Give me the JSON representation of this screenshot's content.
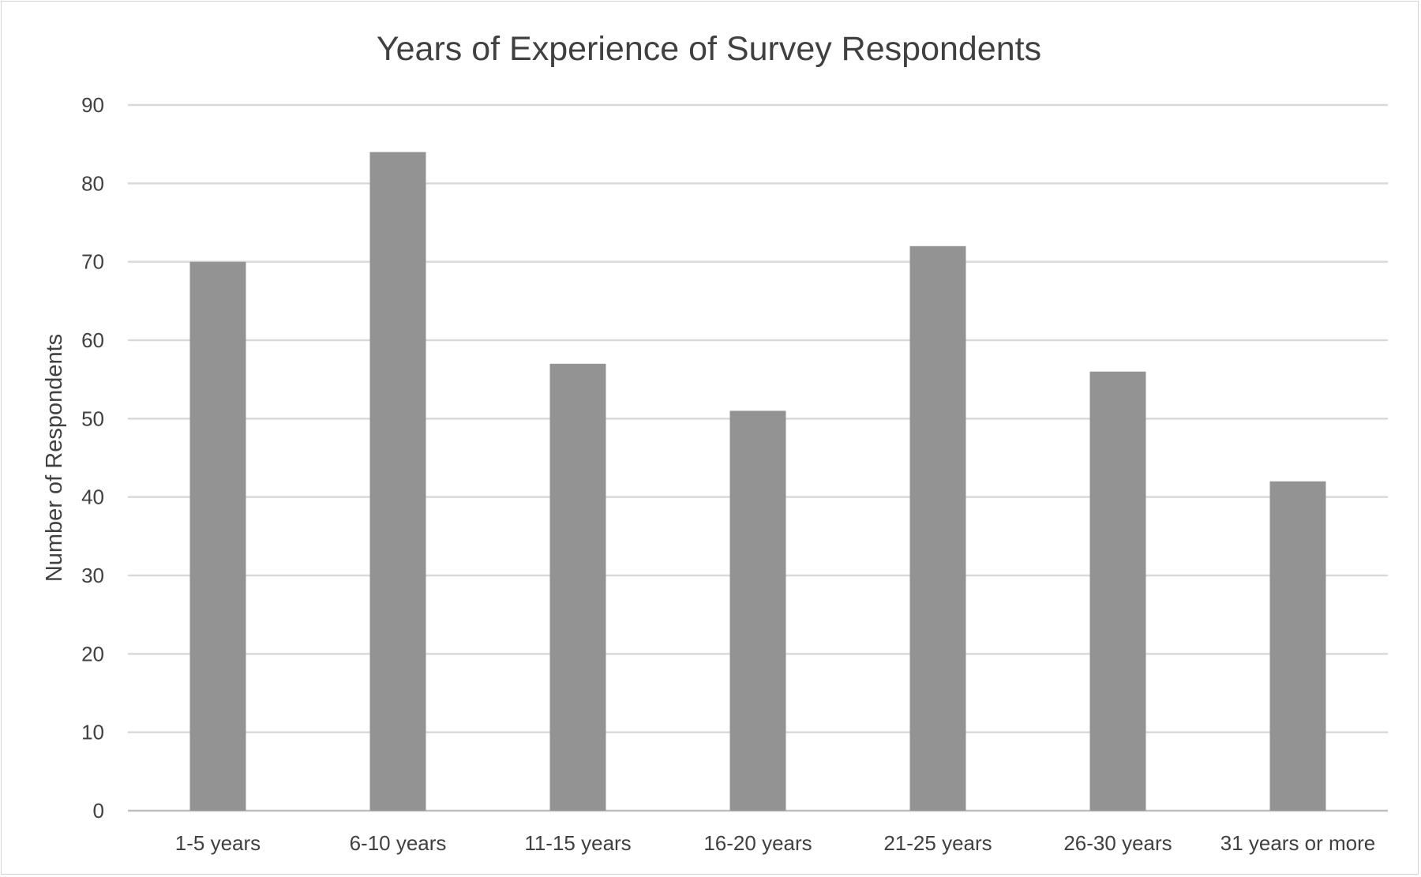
{
  "chart_data": {
    "type": "bar",
    "title": "Years of Experience of Survey Respondents",
    "xlabel": "",
    "ylabel": "Number of Respondents",
    "categories": [
      "1-5 years",
      "6-10 years",
      "11-15 years",
      "16-20 years",
      "21-25 years",
      "26-30 years",
      "31 years or more"
    ],
    "values": [
      70,
      84,
      57,
      51,
      72,
      56,
      42
    ],
    "ylim": [
      0,
      90
    ],
    "yticks": [
      0,
      10,
      20,
      30,
      40,
      50,
      60,
      70,
      80,
      90
    ],
    "grid": true,
    "legend": "none",
    "bar_color": "#939393",
    "gridline_color": "#d9d9d9"
  }
}
